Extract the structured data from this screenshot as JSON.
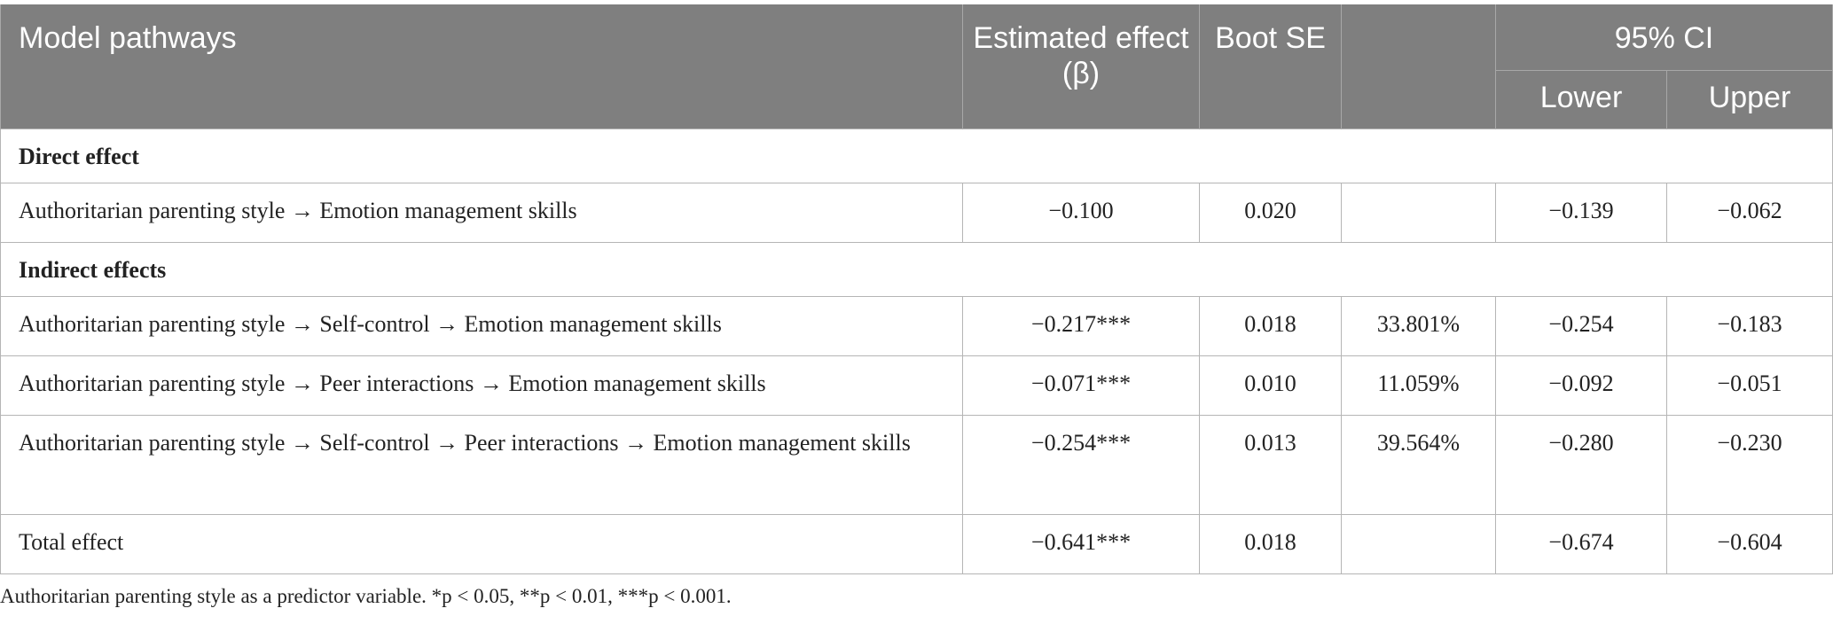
{
  "header": {
    "col_pathway": "Model pathways",
    "col_effect": "Estimated effect (β)",
    "col_se": "Boot SE",
    "col_ratio": "",
    "col_ci": "95% CI",
    "col_lower": "Lower",
    "col_upper": "Upper"
  },
  "sections": {
    "direct": "Direct effect",
    "indirect": "Indirect effects"
  },
  "rows": [
    {
      "pathway": "Authoritarian parenting style → Emotion management skills",
      "effect": "−0.100",
      "se": "0.020",
      "ratio": "",
      "lower": "−0.139",
      "upper": "−0.062"
    },
    {
      "pathway": "Authoritarian parenting style → Self-control → Emotion management skills",
      "effect": "−0.217***",
      "se": "0.018",
      "ratio": "33.801%",
      "lower": "−0.254",
      "upper": "−0.183"
    },
    {
      "pathway": "Authoritarian parenting style → Peer interactions → Emotion management skills",
      "effect": "−0.071***",
      "se": "0.010",
      "ratio": "11.059%",
      "lower": "−0.092",
      "upper": "−0.051"
    },
    {
      "pathway": "Authoritarian parenting style → Self-control → Peer interactions → Emotion management skills",
      "effect": "−0.254***",
      "se": "0.013",
      "ratio": "39.564%",
      "lower": "−0.280",
      "upper": "−0.230"
    },
    {
      "pathway": "Total effect",
      "effect": "−0.641***",
      "se": "0.018",
      "ratio": "",
      "lower": "−0.674",
      "upper": "−0.604"
    }
  ],
  "note": "Authoritarian parenting style as a predictor variable. *p < 0.05, **p < 0.01, ***p < 0.001."
}
